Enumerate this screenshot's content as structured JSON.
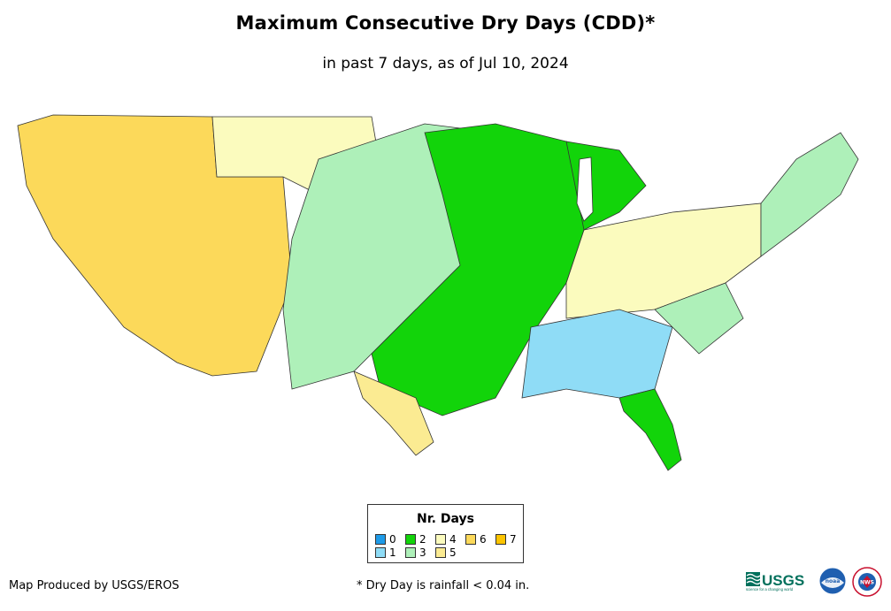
{
  "title": "Maximum Consecutive Dry Days (CDD)*",
  "subtitle": "in past 7 days, as of Jul 10, 2024",
  "legend": {
    "title": "Nr. Days",
    "classes": [
      {
        "label": "0",
        "color": "#1e9be8"
      },
      {
        "label": "1",
        "color": "#8fdcf6"
      },
      {
        "label": "2",
        "color": "#12d40a"
      },
      {
        "label": "3",
        "color": "#aef0b9"
      },
      {
        "label": "4",
        "color": "#fbfbbe"
      },
      {
        "label": "5",
        "color": "#fbeb92"
      },
      {
        "label": "6",
        "color": "#fcd95a"
      },
      {
        "label": "7",
        "color": "#fcc400"
      }
    ]
  },
  "footer": {
    "producer": "Map Produced by USGS/EROS",
    "note": "* Dry Day is rainfall < 0.04 in."
  },
  "logos": {
    "usgs": "USGS",
    "usgs_tagline": "science for a changing world",
    "noaa": "noaa",
    "nws": "NWS"
  },
  "colors": {
    "state_border": "#333333",
    "background": "#ffffff"
  }
}
